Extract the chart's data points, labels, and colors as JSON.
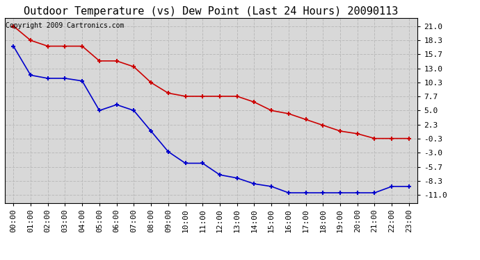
{
  "title": "Outdoor Temperature (vs) Dew Point (Last 24 Hours) 20090113",
  "copyright_text": "Copyright 2009 Cartronics.com",
  "x_labels": [
    "00:00",
    "01:00",
    "02:00",
    "03:00",
    "04:00",
    "05:00",
    "06:00",
    "07:00",
    "08:00",
    "09:00",
    "10:00",
    "11:00",
    "12:00",
    "13:00",
    "14:00",
    "15:00",
    "16:00",
    "17:00",
    "18:00",
    "19:00",
    "20:00",
    "21:00",
    "22:00",
    "23:00"
  ],
  "temp_data": [
    21.0,
    18.3,
    17.2,
    17.2,
    17.2,
    14.4,
    14.4,
    13.3,
    10.3,
    8.3,
    7.7,
    7.7,
    7.7,
    7.7,
    6.6,
    5.0,
    4.4,
    3.3,
    2.2,
    1.1,
    0.6,
    -0.3,
    -0.3,
    -0.3
  ],
  "dew_data": [
    17.2,
    11.7,
    11.1,
    11.1,
    10.6,
    5.0,
    6.1,
    5.0,
    1.1,
    -2.8,
    -5.0,
    -5.0,
    -7.2,
    -7.8,
    -8.9,
    -9.4,
    -10.6,
    -10.6,
    -10.6,
    -10.6,
    -10.6,
    -10.6,
    -9.4,
    -9.4
  ],
  "y_ticks": [
    21.0,
    18.3,
    15.7,
    13.0,
    10.3,
    7.7,
    5.0,
    2.3,
    -0.3,
    -3.0,
    -5.7,
    -8.3,
    -11.0
  ],
  "ylim": [
    -12.5,
    22.5
  ],
  "temp_color": "#cc0000",
  "dew_color": "#0000cc",
  "bg_color": "#ffffff",
  "plot_bg_color": "#d8d8d8",
  "grid_color": "#bbbbbb",
  "title_fontsize": 11,
  "tick_fontsize": 8,
  "copyright_fontsize": 7
}
